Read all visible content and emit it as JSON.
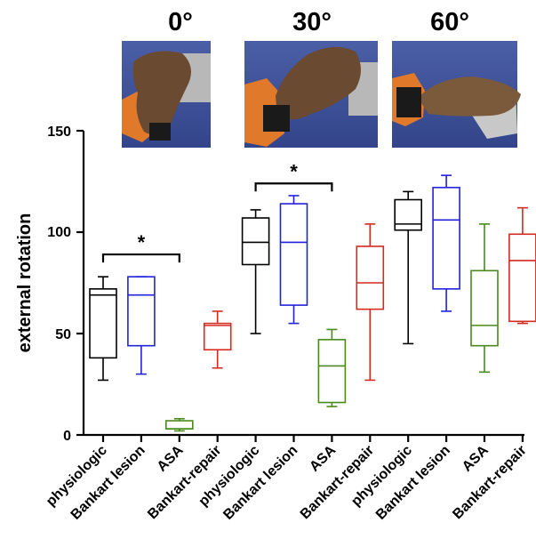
{
  "chart_data": {
    "type": "boxplot",
    "ylabel": "external rotation",
    "ylim": [
      0,
      150
    ],
    "yticks": [
      "0",
      "50",
      "100",
      "150"
    ],
    "groups": [
      {
        "title": "0°",
        "photo": "cadaver shoulder on robotic arm at 0° abduction"
      },
      {
        "title": "30°",
        "photo": "cadaver shoulder on robotic arm at 30° abduction"
      },
      {
        "title": "60°",
        "photo": "cadaver shoulder on robotic arm at 60° abduction"
      }
    ],
    "categories": [
      "physiologic",
      "Bankart lesion",
      "ASA",
      "Bankart-repair",
      "physiologic",
      "Bankart lesion",
      "ASA",
      "Bankart-repair",
      "physiologic",
      "Bankart lesion",
      "ASA",
      "Bankart-repair"
    ],
    "colors": [
      "#000000",
      "#2222dd",
      "#4a8a1c",
      "#d42a20"
    ],
    "boxes": [
      {
        "min": 27,
        "q1": 38,
        "median": 69,
        "q3": 72,
        "max": 78
      },
      {
        "min": 30,
        "q1": 44,
        "median": 69,
        "q3": 78,
        "max": 78
      },
      {
        "min": 2,
        "q1": 3,
        "median": 3,
        "q3": 7,
        "max": 8
      },
      {
        "min": 33,
        "q1": 42,
        "median": 54,
        "q3": 55,
        "max": 61
      },
      {
        "min": 50,
        "q1": 84,
        "median": 95,
        "q3": 107,
        "max": 111
      },
      {
        "min": 55,
        "q1": 64,
        "median": 95,
        "q3": 114,
        "max": 118
      },
      {
        "min": 14,
        "q1": 16,
        "median": 34,
        "q3": 47,
        "max": 52
      },
      {
        "min": 27,
        "q1": 62,
        "median": 75,
        "q3": 93,
        "max": 104
      },
      {
        "min": 45,
        "q1": 101,
        "median": 104,
        "q3": 116,
        "max": 120
      },
      {
        "min": 61,
        "q1": 72,
        "median": 106,
        "q3": 122,
        "max": 128
      },
      {
        "min": 31,
        "q1": 44,
        "median": 54,
        "q3": 81,
        "max": 104
      },
      {
        "min": 55,
        "q1": 56,
        "median": 86,
        "q3": 99,
        "max": 112
      }
    ],
    "significance": [
      {
        "from": 0,
        "to": 2,
        "y": 89,
        "label": "*"
      },
      {
        "from": 4,
        "to": 6,
        "y": 124,
        "label": "*"
      }
    ]
  }
}
